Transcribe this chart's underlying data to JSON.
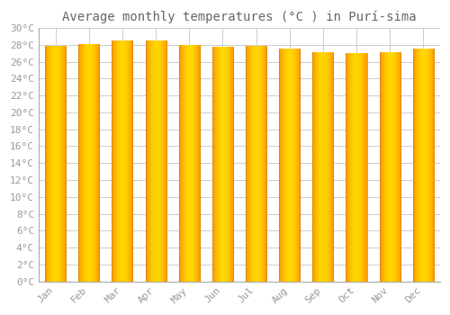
{
  "title": "Average monthly temperatures (°C ) in Purí-sima",
  "months": [
    "Jan",
    "Feb",
    "Mar",
    "Apr",
    "May",
    "Jun",
    "Jul",
    "Aug",
    "Sep",
    "Oct",
    "Nov",
    "Dec"
  ],
  "values": [
    27.8,
    28.1,
    28.5,
    28.5,
    28.0,
    27.7,
    27.9,
    27.5,
    27.1,
    27.0,
    27.1,
    27.5
  ],
  "bar_color_center": "#FFD700",
  "bar_color_edge": "#FF9500",
  "ylim": [
    0,
    30
  ],
  "ytick_step": 2,
  "background_color": "#FFFFFF",
  "plot_bg_color": "#FFFFFF",
  "grid_color": "#CCCCCC",
  "title_fontsize": 10,
  "tick_fontsize": 8,
  "bar_width": 0.62
}
